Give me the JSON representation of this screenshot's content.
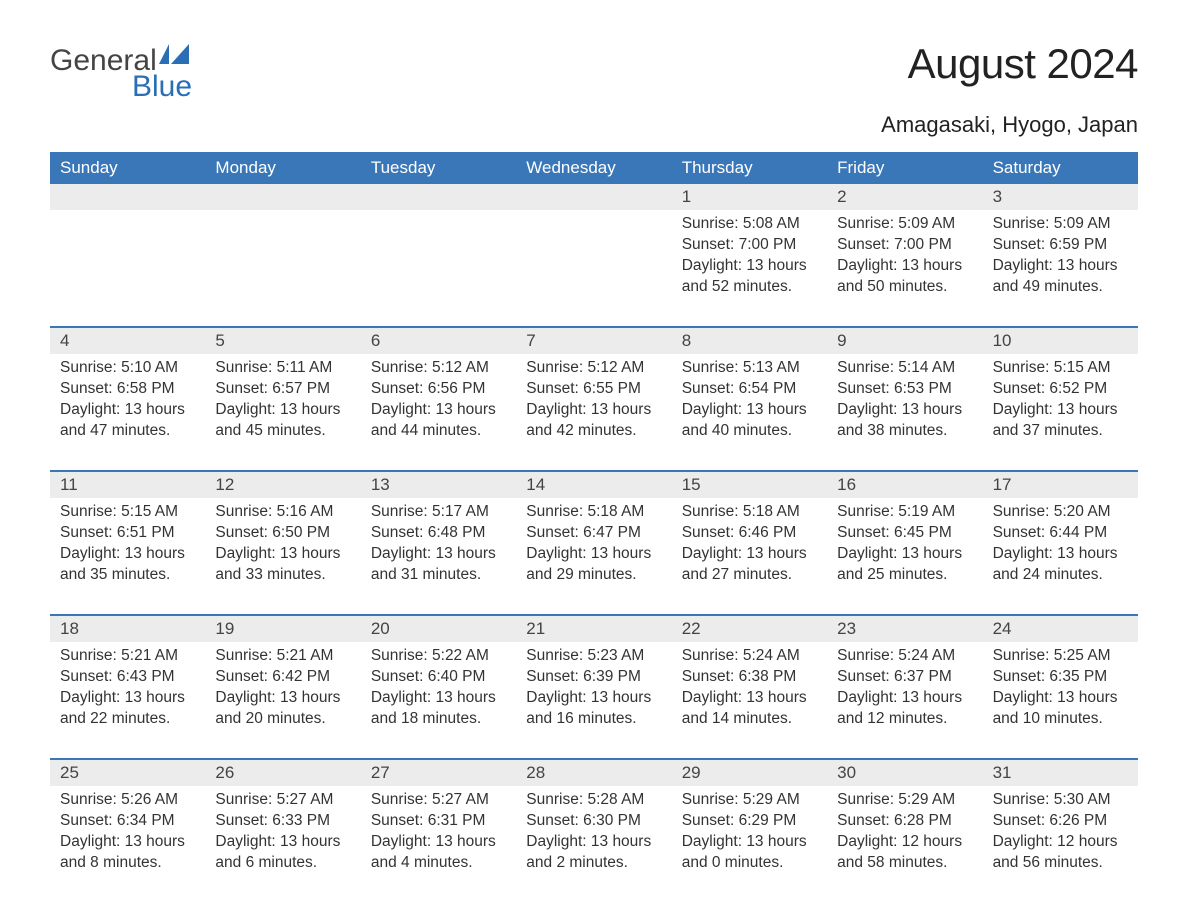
{
  "brand": {
    "word1": "General",
    "word2": "Blue",
    "flag_color": "#2a6fb5"
  },
  "title": "August 2024",
  "location": "Amagasaki, Hyogo, Japan",
  "colors": {
    "header_bg": "#3a77b8",
    "header_text": "#ffffff",
    "band_bg": "#ececec",
    "rule": "#3a77b8",
    "body_text": "#333333"
  },
  "weekdays": [
    "Sunday",
    "Monday",
    "Tuesday",
    "Wednesday",
    "Thursday",
    "Friday",
    "Saturday"
  ],
  "weeks": [
    {
      "nums": [
        "",
        "",
        "",
        "",
        "1",
        "2",
        "3"
      ],
      "cells": [
        null,
        null,
        null,
        null,
        {
          "sunrise": "5:08 AM",
          "sunset": "7:00 PM",
          "daylight": "13 hours and 52 minutes."
        },
        {
          "sunrise": "5:09 AM",
          "sunset": "7:00 PM",
          "daylight": "13 hours and 50 minutes."
        },
        {
          "sunrise": "5:09 AM",
          "sunset": "6:59 PM",
          "daylight": "13 hours and 49 minutes."
        }
      ]
    },
    {
      "nums": [
        "4",
        "5",
        "6",
        "7",
        "8",
        "9",
        "10"
      ],
      "cells": [
        {
          "sunrise": "5:10 AM",
          "sunset": "6:58 PM",
          "daylight": "13 hours and 47 minutes."
        },
        {
          "sunrise": "5:11 AM",
          "sunset": "6:57 PM",
          "daylight": "13 hours and 45 minutes."
        },
        {
          "sunrise": "5:12 AM",
          "sunset": "6:56 PM",
          "daylight": "13 hours and 44 minutes."
        },
        {
          "sunrise": "5:12 AM",
          "sunset": "6:55 PM",
          "daylight": "13 hours and 42 minutes."
        },
        {
          "sunrise": "5:13 AM",
          "sunset": "6:54 PM",
          "daylight": "13 hours and 40 minutes."
        },
        {
          "sunrise": "5:14 AM",
          "sunset": "6:53 PM",
          "daylight": "13 hours and 38 minutes."
        },
        {
          "sunrise": "5:15 AM",
          "sunset": "6:52 PM",
          "daylight": "13 hours and 37 minutes."
        }
      ]
    },
    {
      "nums": [
        "11",
        "12",
        "13",
        "14",
        "15",
        "16",
        "17"
      ],
      "cells": [
        {
          "sunrise": "5:15 AM",
          "sunset": "6:51 PM",
          "daylight": "13 hours and 35 minutes."
        },
        {
          "sunrise": "5:16 AM",
          "sunset": "6:50 PM",
          "daylight": "13 hours and 33 minutes."
        },
        {
          "sunrise": "5:17 AM",
          "sunset": "6:48 PM",
          "daylight": "13 hours and 31 minutes."
        },
        {
          "sunrise": "5:18 AM",
          "sunset": "6:47 PM",
          "daylight": "13 hours and 29 minutes."
        },
        {
          "sunrise": "5:18 AM",
          "sunset": "6:46 PM",
          "daylight": "13 hours and 27 minutes."
        },
        {
          "sunrise": "5:19 AM",
          "sunset": "6:45 PM",
          "daylight": "13 hours and 25 minutes."
        },
        {
          "sunrise": "5:20 AM",
          "sunset": "6:44 PM",
          "daylight": "13 hours and 24 minutes."
        }
      ]
    },
    {
      "nums": [
        "18",
        "19",
        "20",
        "21",
        "22",
        "23",
        "24"
      ],
      "cells": [
        {
          "sunrise": "5:21 AM",
          "sunset": "6:43 PM",
          "daylight": "13 hours and 22 minutes."
        },
        {
          "sunrise": "5:21 AM",
          "sunset": "6:42 PM",
          "daylight": "13 hours and 20 minutes."
        },
        {
          "sunrise": "5:22 AM",
          "sunset": "6:40 PM",
          "daylight": "13 hours and 18 minutes."
        },
        {
          "sunrise": "5:23 AM",
          "sunset": "6:39 PM",
          "daylight": "13 hours and 16 minutes."
        },
        {
          "sunrise": "5:24 AM",
          "sunset": "6:38 PM",
          "daylight": "13 hours and 14 minutes."
        },
        {
          "sunrise": "5:24 AM",
          "sunset": "6:37 PM",
          "daylight": "13 hours and 12 minutes."
        },
        {
          "sunrise": "5:25 AM",
          "sunset": "6:35 PM",
          "daylight": "13 hours and 10 minutes."
        }
      ]
    },
    {
      "nums": [
        "25",
        "26",
        "27",
        "28",
        "29",
        "30",
        "31"
      ],
      "cells": [
        {
          "sunrise": "5:26 AM",
          "sunset": "6:34 PM",
          "daylight": "13 hours and 8 minutes."
        },
        {
          "sunrise": "5:27 AM",
          "sunset": "6:33 PM",
          "daylight": "13 hours and 6 minutes."
        },
        {
          "sunrise": "5:27 AM",
          "sunset": "6:31 PM",
          "daylight": "13 hours and 4 minutes."
        },
        {
          "sunrise": "5:28 AM",
          "sunset": "6:30 PM",
          "daylight": "13 hours and 2 minutes."
        },
        {
          "sunrise": "5:29 AM",
          "sunset": "6:29 PM",
          "daylight": "13 hours and 0 minutes."
        },
        {
          "sunrise": "5:29 AM",
          "sunset": "6:28 PM",
          "daylight": "12 hours and 58 minutes."
        },
        {
          "sunrise": "5:30 AM",
          "sunset": "6:26 PM",
          "daylight": "12 hours and 56 minutes."
        }
      ]
    }
  ],
  "labels": {
    "sunrise": "Sunrise: ",
    "sunset": "Sunset: ",
    "daylight": "Daylight: "
  }
}
